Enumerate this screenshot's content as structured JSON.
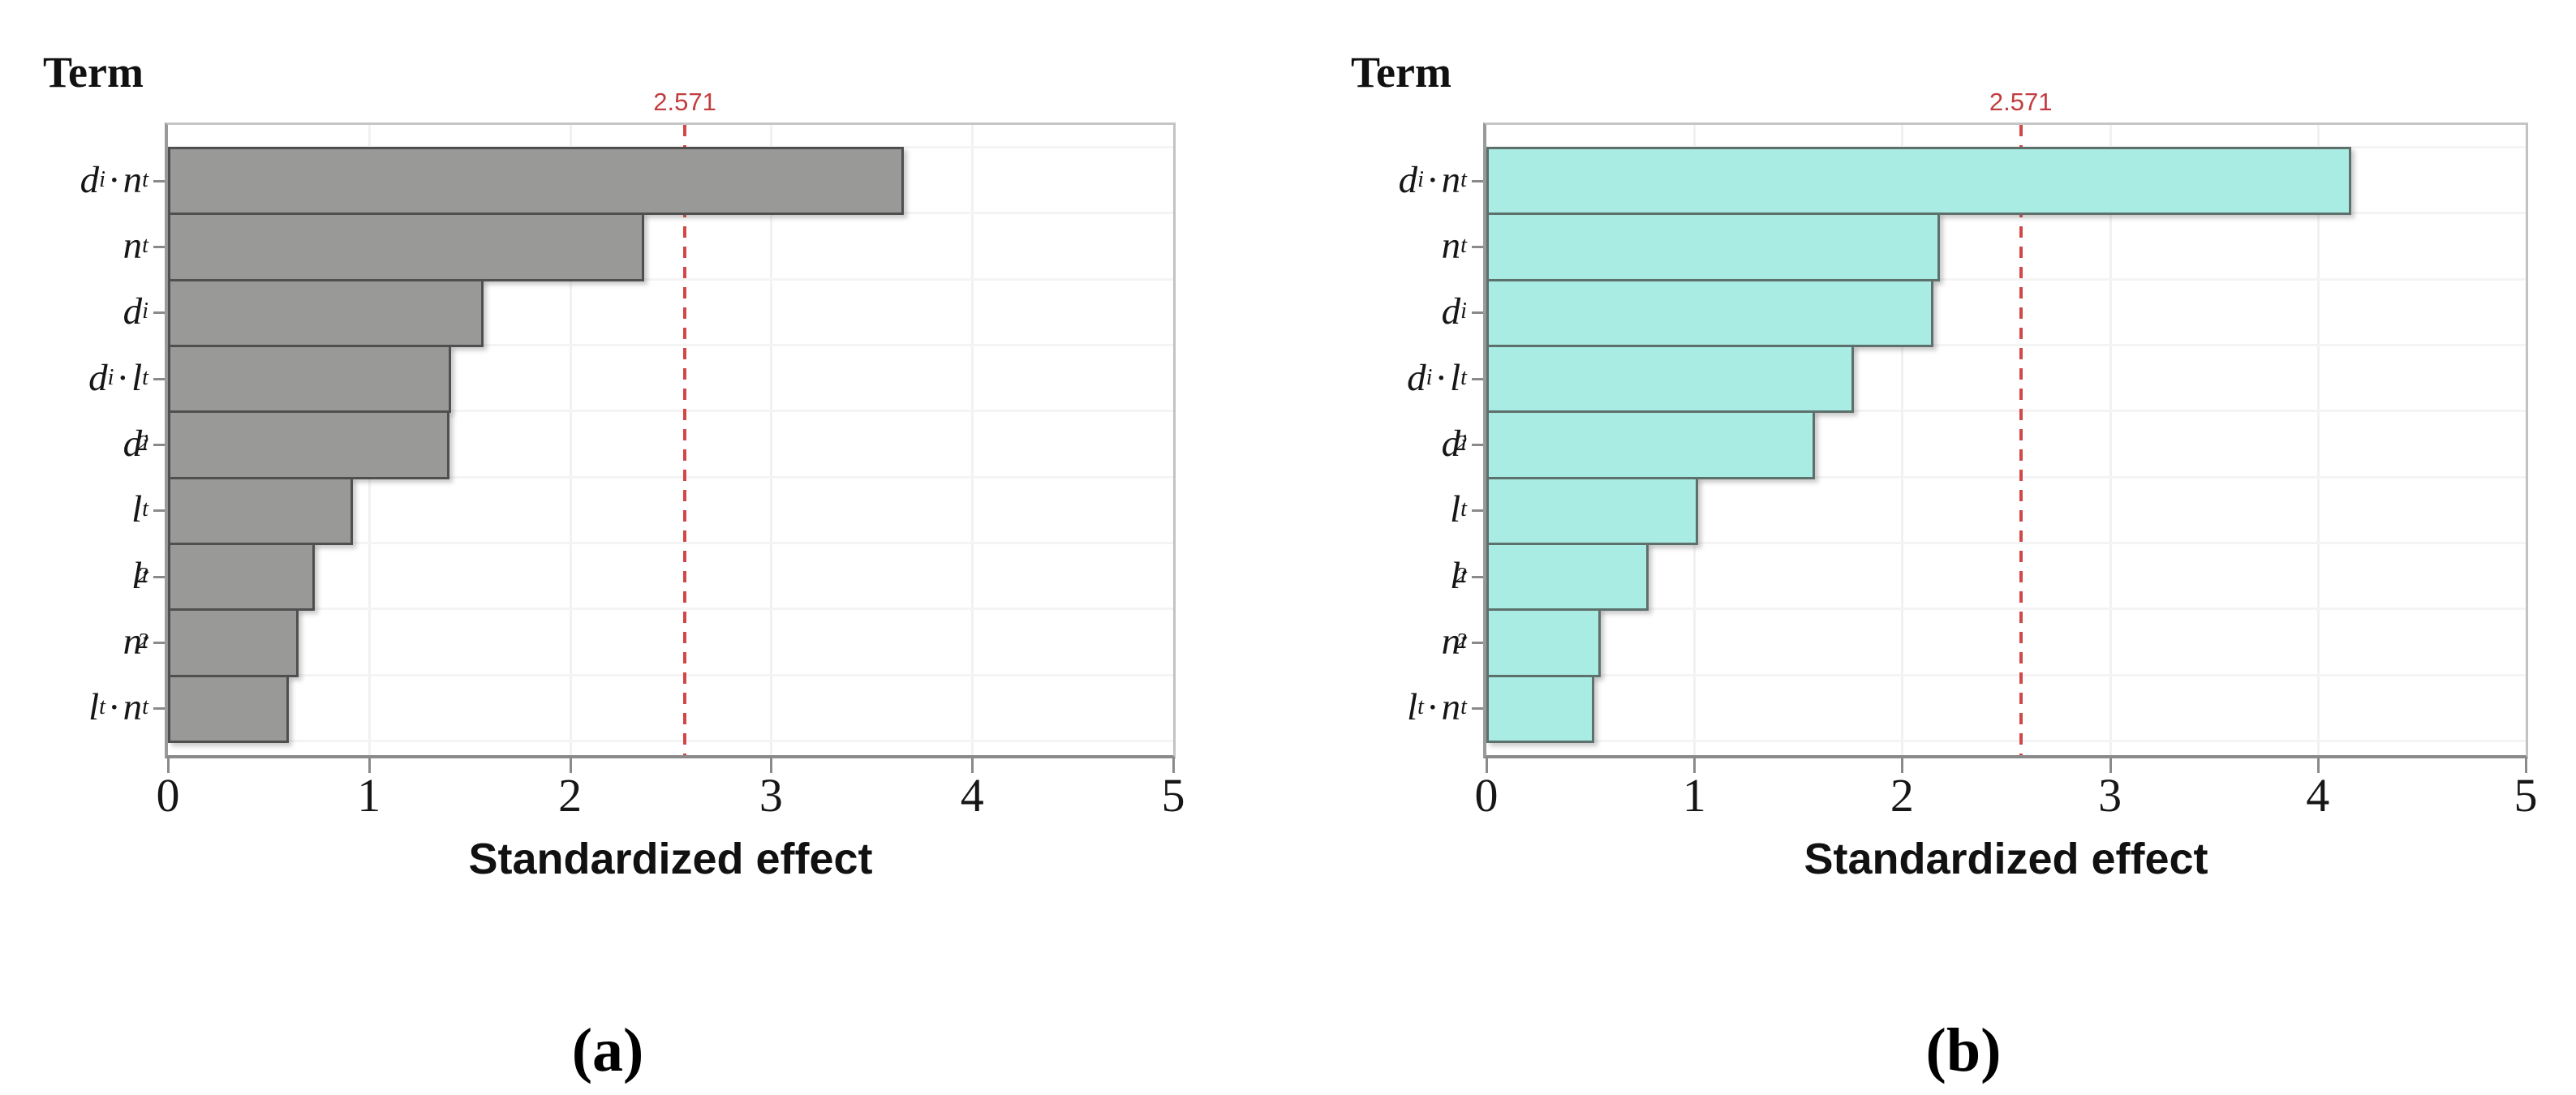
{
  "figure": {
    "type": "pareto-charts-of-standardized-effects",
    "background": "#ffffff"
  },
  "chart_data": [
    {
      "id": "a",
      "type": "bar",
      "orientation": "horizontal",
      "caption": "(a)",
      "y_axis_title": "Term",
      "xlabel": "Standardized effect",
      "categories": [
        "dᵢ·nₜ",
        "nₜ",
        "dᵢ",
        "dᵢ·lₜ",
        "dᵢ²",
        "lₜ",
        "lₜ²",
        "nₜ²",
        "lₜ·nₜ"
      ],
      "values": [
        3.66,
        2.37,
        1.57,
        1.41,
        1.4,
        0.92,
        0.73,
        0.65,
        0.6
      ],
      "reference_line": 2.571,
      "reference_label": "2.571",
      "xlim": [
        0,
        5
      ],
      "xticks": [
        "0",
        "1",
        "2",
        "3",
        "4",
        "5"
      ],
      "grid": true,
      "legend": "none",
      "bar_fill": "#999998",
      "bar_border": "#4f4f4f",
      "reference_color": "#d24748",
      "label_parts": [
        [
          {
            "t": "d"
          },
          {
            "t": "i",
            "s": "sub"
          },
          {
            "t": "·",
            "s": "dot"
          },
          {
            "t": "n"
          },
          {
            "t": "t",
            "s": "sub"
          }
        ],
        [
          {
            "t": "n"
          },
          {
            "t": "t",
            "s": "sub"
          }
        ],
        [
          {
            "t": "d"
          },
          {
            "t": "i",
            "s": "sub"
          }
        ],
        [
          {
            "t": "d"
          },
          {
            "t": "i",
            "s": "sub"
          },
          {
            "t": "·",
            "s": "dot"
          },
          {
            "t": "l"
          },
          {
            "t": "t",
            "s": "sub"
          }
        ],
        [
          {
            "t": "d"
          },
          {
            "t": "i",
            "s": "sub"
          },
          {
            "t": "2",
            "s": "sup2"
          }
        ],
        [
          {
            "t": "l"
          },
          {
            "t": "t",
            "s": "sub"
          }
        ],
        [
          {
            "t": "l"
          },
          {
            "t": "t",
            "s": "sub"
          },
          {
            "t": "2",
            "s": "sup2"
          }
        ],
        [
          {
            "t": "n"
          },
          {
            "t": "t",
            "s": "sub"
          },
          {
            "t": "2",
            "s": "sup2"
          }
        ],
        [
          {
            "t": "l"
          },
          {
            "t": "t",
            "s": "sub"
          },
          {
            "t": "·",
            "s": "dot"
          },
          {
            "t": "n"
          },
          {
            "t": "t",
            "s": "sub"
          }
        ]
      ]
    },
    {
      "id": "b",
      "type": "bar",
      "orientation": "horizontal",
      "caption": "(b)",
      "y_axis_title": "Term",
      "xlabel": "Standardized effect",
      "categories": [
        "dᵢ·nₜ",
        "nₜ",
        "dᵢ",
        "dᵢ·lₜ",
        "dᵢ²",
        "lₜ",
        "lₜ²",
        "nₜ²",
        "lₜ·nₜ"
      ],
      "values": [
        4.16,
        2.18,
        2.15,
        1.77,
        1.58,
        1.02,
        0.78,
        0.55,
        0.52
      ],
      "reference_line": 2.571,
      "reference_label": "2.571",
      "xlim": [
        0,
        5
      ],
      "xticks": [
        "0",
        "1",
        "2",
        "3",
        "4",
        "5"
      ],
      "grid": true,
      "legend": "none",
      "bar_fill": "#a8ece4",
      "bar_border": "#5e706c",
      "reference_color": "#d24748",
      "label_parts": [
        [
          {
            "t": "d"
          },
          {
            "t": "i",
            "s": "sub"
          },
          {
            "t": "·",
            "s": "dot"
          },
          {
            "t": "n"
          },
          {
            "t": "t",
            "s": "sub"
          }
        ],
        [
          {
            "t": "n"
          },
          {
            "t": "t",
            "s": "sub"
          }
        ],
        [
          {
            "t": "d"
          },
          {
            "t": "i",
            "s": "sub"
          }
        ],
        [
          {
            "t": "d"
          },
          {
            "t": "i",
            "s": "sub"
          },
          {
            "t": "·",
            "s": "dot"
          },
          {
            "t": "l"
          },
          {
            "t": "t",
            "s": "sub"
          }
        ],
        [
          {
            "t": "d"
          },
          {
            "t": "i",
            "s": "sub"
          },
          {
            "t": "2",
            "s": "sup2"
          }
        ],
        [
          {
            "t": "l"
          },
          {
            "t": "t",
            "s": "sub"
          }
        ],
        [
          {
            "t": "l"
          },
          {
            "t": "t",
            "s": "sub"
          },
          {
            "t": "2",
            "s": "sup2"
          }
        ],
        [
          {
            "t": "n"
          },
          {
            "t": "t",
            "s": "sub"
          },
          {
            "t": "2",
            "s": "sup2"
          }
        ],
        [
          {
            "t": "l"
          },
          {
            "t": "t",
            "s": "sub"
          },
          {
            "t": "·",
            "s": "dot"
          },
          {
            "t": "n"
          },
          {
            "t": "t",
            "s": "sub"
          }
        ]
      ]
    }
  ]
}
